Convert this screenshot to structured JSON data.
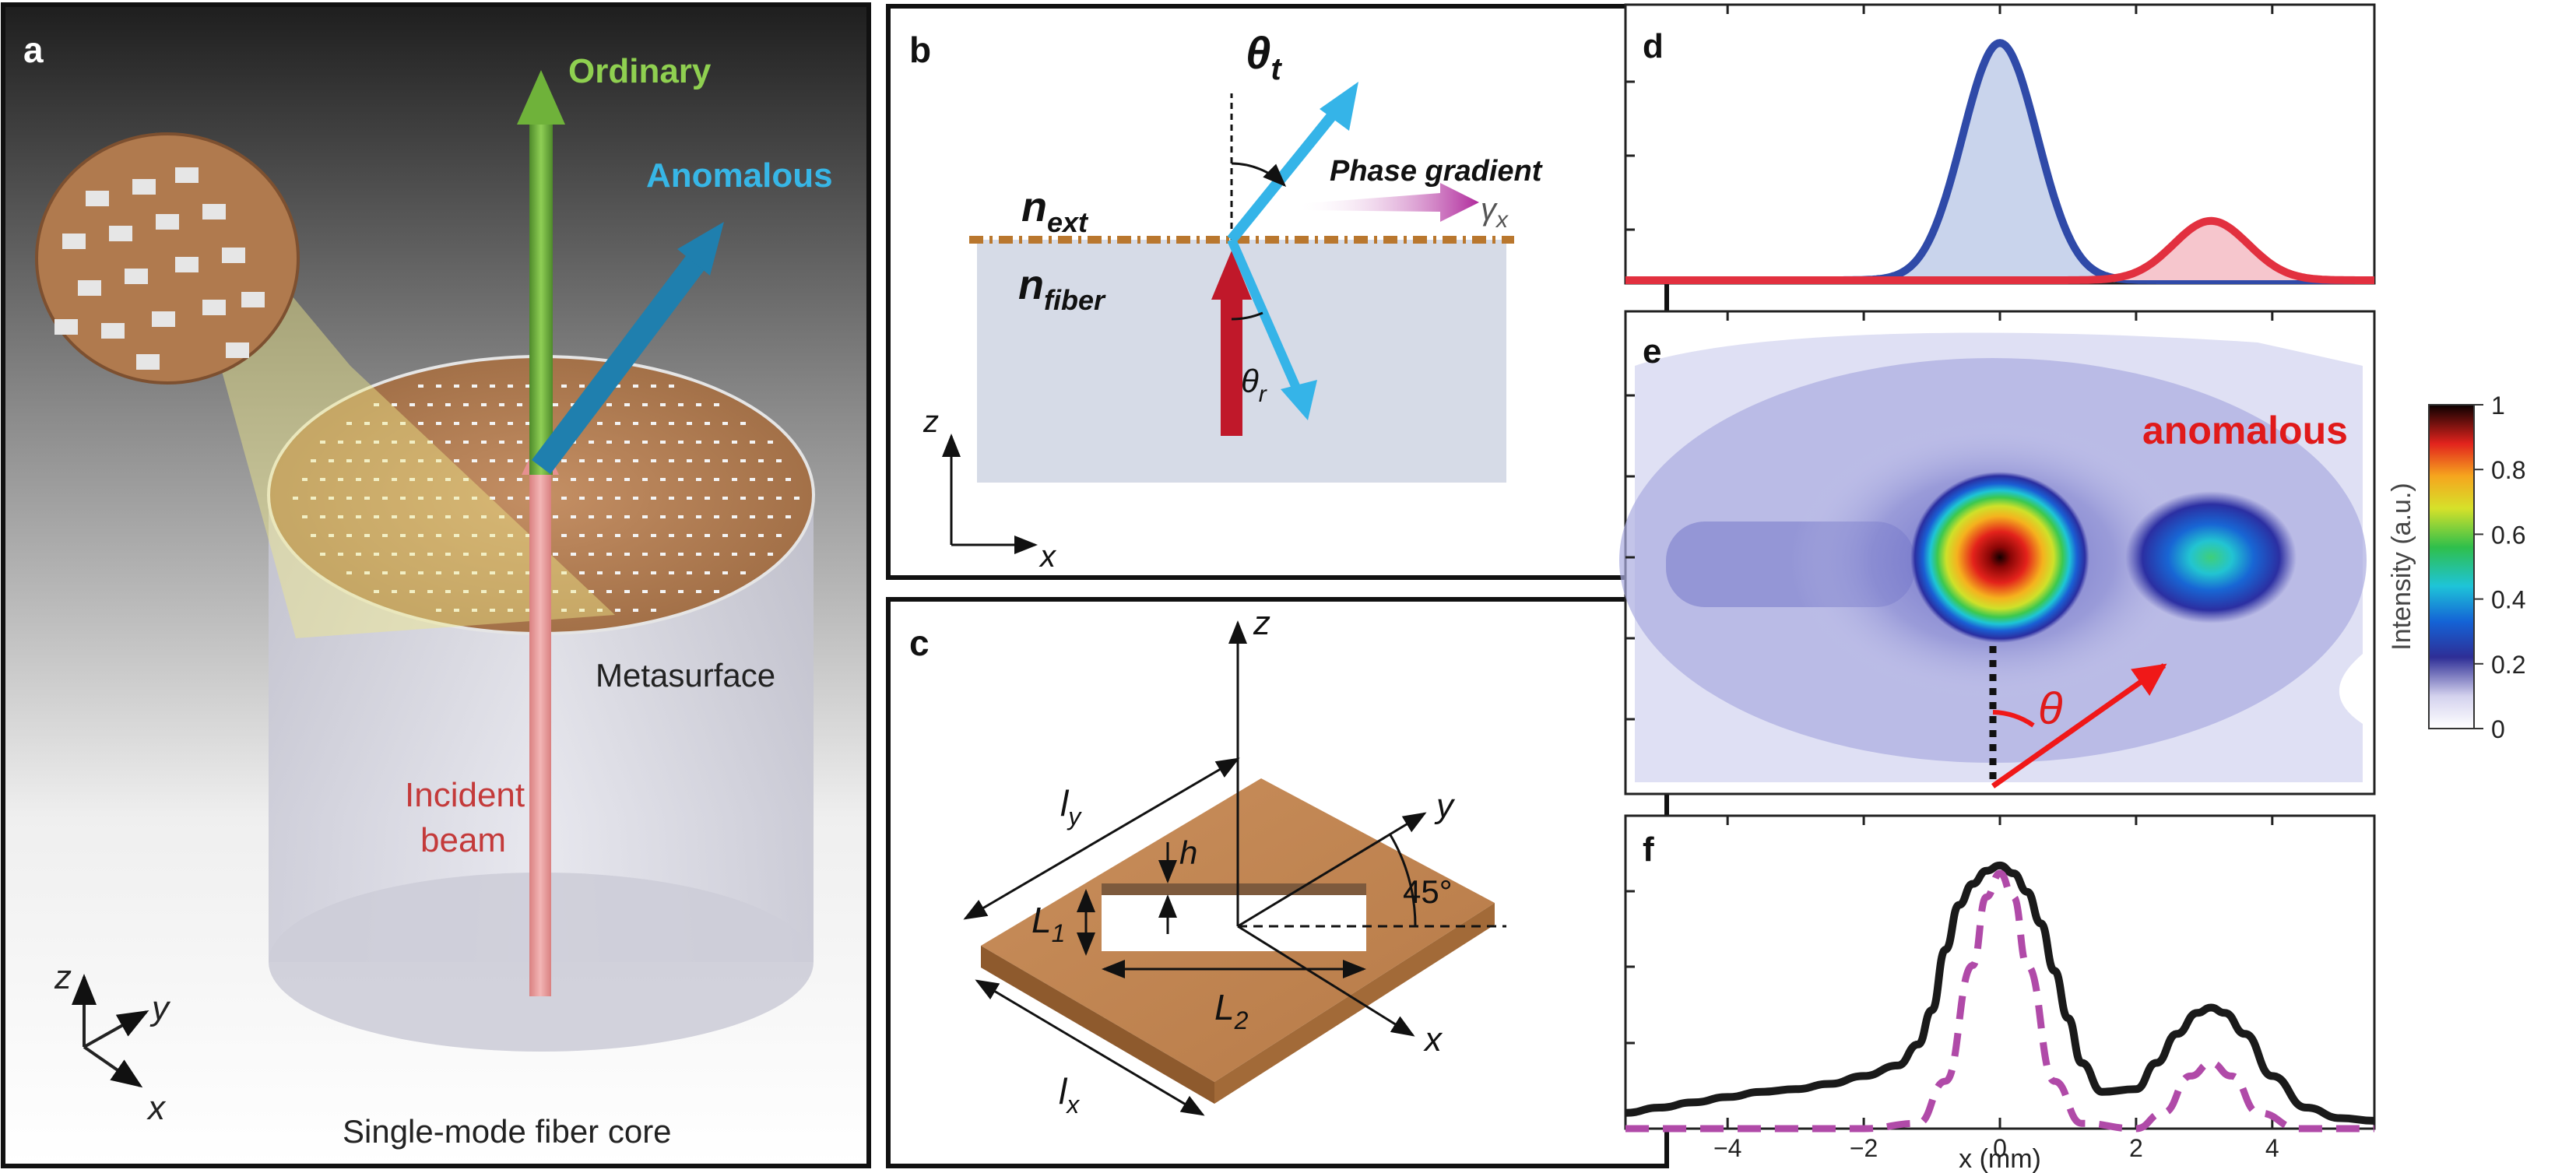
{
  "panel_a": {
    "letter": "a",
    "ordinary": "Ordinary",
    "anomalous": "Anomalous",
    "metasurface": "Metasurface",
    "incident_line1": "Incident",
    "incident_line2": "beam",
    "fiber_core": "Single-mode fiber core",
    "axis_z": "z",
    "axis_y": "y",
    "axis_x": "x"
  },
  "panel_b": {
    "letter": "b",
    "theta_t": "θ",
    "theta_t_sub": "t",
    "theta_r": "θ",
    "theta_r_sub": "r",
    "n_ext": "n",
    "n_ext_sub": "ext",
    "n_fiber": "n",
    "n_fiber_sub": "fiber",
    "phase_gradient": "Phase gradient",
    "gamma": "γ",
    "gamma_sub": "x",
    "axis_z": "z",
    "axis_x": "x"
  },
  "panel_c": {
    "letter": "c",
    "axis_z": "z",
    "axis_y": "y",
    "axis_x": "x",
    "ly": "l",
    "ly_sub": "y",
    "lx": "l",
    "lx_sub": "x",
    "h": "h",
    "L1": "L",
    "L1_sub": "1",
    "L2": "L",
    "L2_sub": "2",
    "angle": "45°"
  },
  "panel_d": {
    "letter": "d"
  },
  "panel_e": {
    "letter": "e",
    "anomalous": "anomalous",
    "theta": "θ"
  },
  "panel_f": {
    "letter": "f"
  },
  "colorbar": {
    "label": "Intensity (a.u.)",
    "ticks": [
      "1",
      "0.8",
      "0.6",
      "0.4",
      "0.2",
      "0"
    ]
  },
  "chart_data": [
    {
      "type": "area",
      "panel": "d",
      "x_range": [
        -5.5,
        5.5
      ],
      "y_range": [
        0,
        1.05
      ],
      "series": [
        {
          "color": "#2f4aa8",
          "fill": "#c9d4ec",
          "gaussian": {
            "center": 0,
            "sigma": 0.55,
            "peak": 1.0
          }
        },
        {
          "color": "#e2303f",
          "fill": "#f6c6cd",
          "gaussian": {
            "center": 3.1,
            "sigma": 0.55,
            "peak": 0.25
          }
        }
      ]
    },
    {
      "type": "heatmap",
      "panel": "e",
      "x_range": [
        -5.5,
        5.5
      ],
      "spots": [
        {
          "x": 0,
          "peak": 1.0
        },
        {
          "x": 3.1,
          "peak": 0.4
        }
      ]
    },
    {
      "type": "line",
      "panel": "f",
      "xlabel": "x (mm)",
      "x_ticks": [
        -4,
        -2,
        0,
        2,
        4
      ],
      "x_range": [
        -5.5,
        5.5
      ],
      "y_range": [
        0,
        1.05
      ],
      "series": [
        {
          "color": "#1a1a1a",
          "style": "solid",
          "x": [
            -5.5,
            -5,
            -4.5,
            -4,
            -3.5,
            -3,
            -2.5,
            -2,
            -1.5,
            -1.2,
            -1,
            -0.8,
            -0.6,
            -0.4,
            -0.2,
            0,
            0.2,
            0.4,
            0.6,
            0.8,
            1,
            1.2,
            1.5,
            2,
            2.3,
            2.6,
            2.9,
            3.1,
            3.3,
            3.6,
            4,
            4.5,
            5,
            5.5
          ],
          "y": [
            0.06,
            0.08,
            0.1,
            0.12,
            0.14,
            0.15,
            0.17,
            0.2,
            0.24,
            0.32,
            0.45,
            0.68,
            0.85,
            0.93,
            0.98,
            1.0,
            0.97,
            0.9,
            0.78,
            0.6,
            0.42,
            0.25,
            0.14,
            0.15,
            0.25,
            0.36,
            0.44,
            0.46,
            0.44,
            0.36,
            0.2,
            0.08,
            0.04,
            0.03
          ]
        },
        {
          "color": "#b04aa8",
          "style": "dashed",
          "x": [
            -5.5,
            -2,
            -1.2,
            -0.8,
            -0.4,
            -0.2,
            0,
            0.2,
            0.4,
            0.8,
            1.2,
            2,
            2.4,
            2.8,
            3.1,
            3.4,
            3.8,
            4.4,
            5.5
          ],
          "y": [
            0,
            0,
            0.02,
            0.18,
            0.62,
            0.88,
            0.97,
            0.88,
            0.62,
            0.18,
            0.02,
            0,
            0.06,
            0.2,
            0.25,
            0.2,
            0.06,
            0,
            0
          ]
        }
      ]
    }
  ]
}
